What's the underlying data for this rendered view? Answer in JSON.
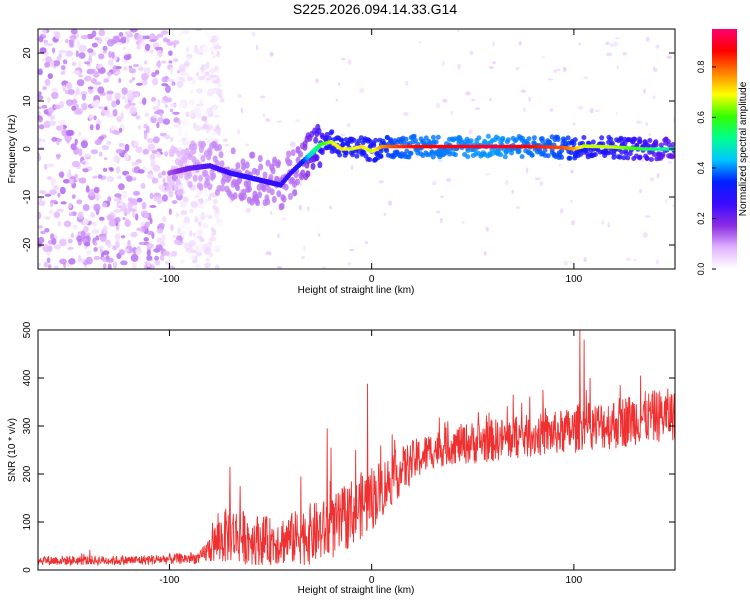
{
  "figure_title": "S225.2026.094.14.33.G14",
  "colors": {
    "snr_line": "#f03030",
    "background": "#ffffff",
    "colormap": [
      "#ffffff",
      "#e0b0ff",
      "#8a2be2",
      "#3a0aff",
      "#0020ff",
      "#00c8ff",
      "#00ff90",
      "#33ff00",
      "#ffff00",
      "#ff8000",
      "#ff0000",
      "#ff0070"
    ]
  },
  "chart_data": [
    {
      "id": "spectrogram",
      "type": "heatmap",
      "title": "",
      "xlabel": "Height of straight line (km)",
      "ylabel": "Frequency (Hz)",
      "xlim": [
        -165,
        150
      ],
      "ylim": [
        -25,
        25
      ],
      "xticks": [
        -100,
        0,
        100
      ],
      "xtick_labels": [
        "-100",
        "0",
        "100"
      ],
      "yticks": [
        -20,
        -10,
        0,
        10,
        20
      ],
      "ytick_labels": [
        "-20",
        "-10",
        "0",
        "10",
        "20"
      ],
      "colorbar": {
        "label": "Normalized spectral amplitude",
        "range": [
          0,
          0.95
        ],
        "ticks": [
          0.0,
          0.2,
          0.4,
          0.6,
          0.8
        ],
        "tick_labels": [
          "0.0",
          "0.2",
          "0.4",
          "0.6",
          "0.8"
        ]
      },
      "noise_region": {
        "x_range": [
          -165,
          -85
        ],
        "y_range": [
          -25,
          25
        ],
        "amplitude": 0.12
      },
      "ridge": {
        "x": [
          -100,
          -90,
          -80,
          -70,
          -60,
          -50,
          -45,
          -40,
          -35,
          -30,
          -25,
          -20,
          -15,
          -10,
          -5,
          0,
          5,
          10,
          20,
          40,
          60,
          80,
          95,
          100,
          105,
          120,
          135,
          150
        ],
        "y": [
          -5,
          -4,
          -3.5,
          -5,
          -6,
          -7,
          -7.5,
          -5,
          -3,
          -1,
          1,
          1.5,
          0,
          0,
          0.5,
          -0.5,
          0.5,
          0.5,
          0.5,
          0.5,
          0.5,
          0.5,
          0.3,
          0,
          0.6,
          0.4,
          0,
          0
        ],
        "amplitude": [
          0.15,
          0.22,
          0.25,
          0.28,
          0.3,
          0.28,
          0.3,
          0.28,
          0.32,
          0.5,
          0.6,
          0.7,
          0.75,
          0.7,
          0.75,
          0.7,
          0.8,
          0.85,
          0.9,
          0.92,
          0.95,
          0.9,
          0.85,
          0.8,
          0.7,
          0.7,
          0.6,
          0.5
        ]
      }
    },
    {
      "id": "snr",
      "type": "line",
      "title": "",
      "xlabel": "Height of straight line (km)",
      "ylabel": "SNR (10 * v/v)",
      "xlim": [
        -165,
        150
      ],
      "ylim": [
        0,
        500
      ],
      "xticks": [
        -100,
        0,
        100
      ],
      "xtick_labels": [
        "-100",
        "0",
        "100"
      ],
      "yticks": [
        0,
        100,
        200,
        300,
        400,
        500
      ],
      "ytick_labels": [
        "0",
        "100",
        "200",
        "300",
        "400",
        "500"
      ],
      "series": [
        {
          "name": "SNR",
          "envelope": {
            "x": [
              -165,
              -120,
              -85,
              -80,
              -75,
              -70,
              -60,
              -50,
              -40,
              -30,
              -20,
              -15,
              -10,
              -5,
              0,
              10,
              20,
              30,
              40,
              50,
              60,
              70,
              80,
              90,
              100,
              103,
              110,
              120,
              130,
              140,
              150
            ],
            "mean": [
              20,
              20,
              25,
              45,
              65,
              75,
              65,
              60,
              65,
              75,
              85,
              100,
              120,
              135,
              150,
              190,
              225,
              250,
              260,
              265,
              270,
              275,
              280,
              285,
              290,
              300,
              300,
              305,
              315,
              320,
              325
            ],
            "spread": [
              10,
              10,
              12,
              30,
              55,
              60,
              55,
              50,
              55,
              65,
              65,
              70,
              70,
              70,
              70,
              55,
              45,
              40,
              40,
              45,
              45,
              45,
              45,
              45,
              50,
              50,
              50,
              55,
              55,
              55,
              55
            ]
          },
          "spikes": [
            {
              "x": -70,
              "y": 215
            },
            {
              "x": -65,
              "y": 175
            },
            {
              "x": -35,
              "y": 195
            },
            {
              "x": -22,
              "y": 295
            },
            {
              "x": -20,
              "y": 255
            },
            {
              "x": -8,
              "y": 250
            },
            {
              "x": -2,
              "y": 388
            },
            {
              "x": 70,
              "y": 365
            },
            {
              "x": 103,
              "y": 500
            },
            {
              "x": 105,
              "y": 480
            },
            {
              "x": 108,
              "y": 400
            },
            {
              "x": 123,
              "y": 385
            },
            {
              "x": 133,
              "y": 405
            }
          ]
        }
      ]
    }
  ]
}
